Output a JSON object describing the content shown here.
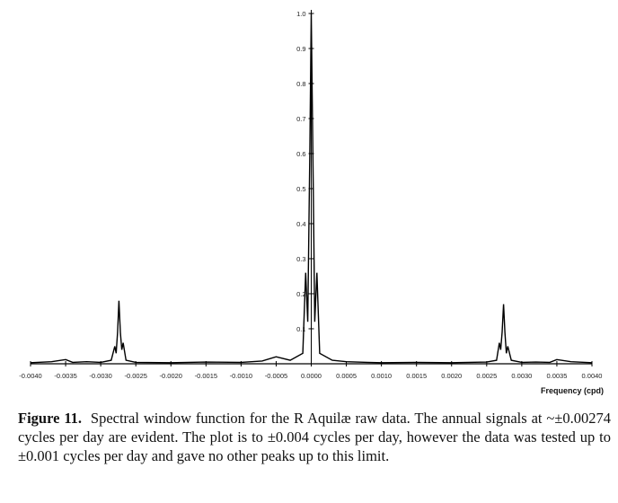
{
  "chart_data": {
    "type": "line",
    "title": "",
    "xlabel": "Frequency (cpd)",
    "ylabel": "",
    "xlim": [
      -0.004,
      0.004
    ],
    "ylim": [
      0,
      1.0
    ],
    "grid": false,
    "x_ticks": [
      "-0.0040",
      "-0.0035",
      "-0.0030",
      "-0.0025",
      "-0.0020",
      "-0.0015",
      "-0.0010",
      "-0.0005",
      "0.0000",
      "0.0005",
      "0.0010",
      "0.0015",
      "0.0020",
      "0.0025",
      "0.0030",
      "0.0035",
      "0.0040"
    ],
    "y_ticks": [
      "0.1",
      "0.2",
      "0.3",
      "0.4",
      "0.5",
      "0.6",
      "0.7",
      "0.8",
      "0.9",
      "1.0"
    ],
    "series": [
      {
        "name": "Spectral window",
        "points": [
          [
            -0.004,
            0.003
          ],
          [
            -0.0037,
            0.006
          ],
          [
            -0.0035,
            0.012
          ],
          [
            -0.0034,
            0.004
          ],
          [
            -0.0032,
            0.006
          ],
          [
            -0.003,
            0.004
          ],
          [
            -0.00285,
            0.01
          ],
          [
            -0.0028,
            0.05
          ],
          [
            -0.00278,
            0.03
          ],
          [
            -0.00276,
            0.09
          ],
          [
            -0.00274,
            0.18
          ],
          [
            -0.00272,
            0.09
          ],
          [
            -0.0027,
            0.04
          ],
          [
            -0.00268,
            0.06
          ],
          [
            -0.00264,
            0.01
          ],
          [
            -0.0025,
            0.004
          ],
          [
            -0.002,
            0.003
          ],
          [
            -0.0015,
            0.005
          ],
          [
            -0.001,
            0.004
          ],
          [
            -0.0007,
            0.008
          ],
          [
            -0.0005,
            0.02
          ],
          [
            -0.0003,
            0.01
          ],
          [
            -0.00012,
            0.03
          ],
          [
            -8e-05,
            0.26
          ],
          [
            -5e-05,
            0.12
          ],
          [
            -2e-05,
            0.6
          ],
          [
            0.0,
            1.0
          ],
          [
            2e-05,
            0.65
          ],
          [
            5e-05,
            0.12
          ],
          [
            8e-05,
            0.26
          ],
          [
            0.00012,
            0.03
          ],
          [
            0.0003,
            0.01
          ],
          [
            0.0005,
            0.006
          ],
          [
            0.0008,
            0.004
          ],
          [
            0.001,
            0.003
          ],
          [
            0.0015,
            0.004
          ],
          [
            0.002,
            0.003
          ],
          [
            0.0025,
            0.005
          ],
          [
            0.00264,
            0.01
          ],
          [
            0.00268,
            0.06
          ],
          [
            0.0027,
            0.04
          ],
          [
            0.00272,
            0.09
          ],
          [
            0.00274,
            0.17
          ],
          [
            0.00276,
            0.09
          ],
          [
            0.00278,
            0.03
          ],
          [
            0.0028,
            0.05
          ],
          [
            0.00285,
            0.01
          ],
          [
            0.003,
            0.004
          ],
          [
            0.0032,
            0.005
          ],
          [
            0.0034,
            0.004
          ],
          [
            0.0035,
            0.012
          ],
          [
            0.0037,
            0.006
          ],
          [
            0.004,
            0.003
          ]
        ]
      }
    ]
  },
  "caption": {
    "label": "Figure 11.",
    "text": "Spectral window function for the R Aquilæ raw data. The annual signals at ~±0.00274 cycles per day are evident. The plot is to ±0.004 cycles per day, however the data was tested up to ±0.001 cycles per day and gave no other peaks up to this limit."
  }
}
